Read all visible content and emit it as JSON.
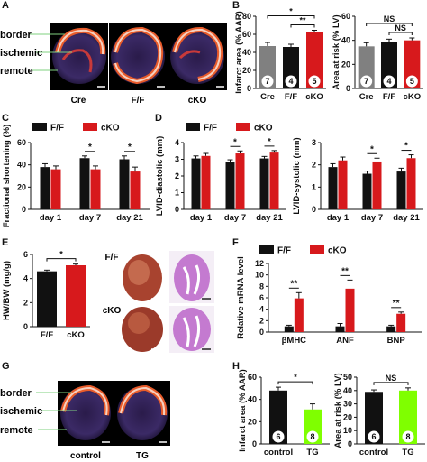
{
  "panel_letters": {
    "A": "A",
    "B": "B",
    "C": "C",
    "D": "D",
    "E": "E",
    "F": "F",
    "G": "G",
    "H": "H"
  },
  "panelA": {
    "region_labels": [
      "border",
      "ischemic",
      "remote"
    ],
    "image_labels": [
      "Cre",
      "F/F",
      "cKO"
    ]
  },
  "panelE": {
    "image_labels": [
      "F/F",
      "cKO"
    ]
  },
  "panelG": {
    "region_labels": [
      "border",
      "ischemic",
      "remote"
    ],
    "image_labels": [
      "control",
      "TG"
    ]
  },
  "colors": {
    "black": "#111111",
    "red": "#d7191c",
    "gray": "#808080",
    "green": "#7fff00",
    "tissue_red": "#b33a3a",
    "stain_purple": "#b060c0"
  },
  "chart_data": [
    {
      "id": "B1",
      "type": "bar",
      "categories": [
        "Cre",
        "F/F",
        "cKO"
      ],
      "values": [
        47,
        46,
        63
      ],
      "errors": [
        4,
        3,
        1.5
      ],
      "n_labels": [
        "7",
        "4",
        "5"
      ],
      "bar_colors": [
        "gray",
        "black",
        "red"
      ],
      "ylabel": "Infarct area (% AAR)",
      "ylim": [
        0,
        80
      ],
      "yticks": [
        "0",
        "20",
        "40",
        "60",
        "80"
      ],
      "significance": [
        {
          "from": 0,
          "to": 2,
          "label": "*"
        },
        {
          "from": 1,
          "to": 2,
          "label": "**"
        }
      ]
    },
    {
      "id": "B2",
      "type": "bar",
      "categories": [
        "Cre",
        "F/F",
        "cKO"
      ],
      "values": [
        35,
        39,
        40
      ],
      "errors": [
        3,
        2,
        2
      ],
      "n_labels": [
        "7",
        "4",
        "5"
      ],
      "bar_colors": [
        "gray",
        "black",
        "red"
      ],
      "ylabel": "Area at risk (% LV)",
      "ylim": [
        0,
        60
      ],
      "yticks": [
        "0",
        "20",
        "40",
        "60"
      ],
      "significance": [
        {
          "from": 0,
          "to": 2,
          "label": "NS"
        },
        {
          "from": 1,
          "to": 2,
          "label": "NS"
        }
      ]
    },
    {
      "id": "C",
      "type": "bar",
      "categories": [
        "day 1",
        "day 7",
        "day 21"
      ],
      "series": [
        {
          "name": "F/F",
          "color": "black",
          "values": [
            38,
            46,
            45
          ],
          "errors": [
            3,
            2,
            3
          ]
        },
        {
          "name": "cKO",
          "color": "red",
          "values": [
            36,
            36,
            34
          ],
          "errors": [
            3,
            3,
            4
          ]
        }
      ],
      "ylabel": "Fractional shortening (%)",
      "ylim": [
        0,
        60
      ],
      "yticks": [
        "0",
        "20",
        "40",
        "60"
      ],
      "significance": [
        {
          "group": 1,
          "label": "*"
        },
        {
          "group": 2,
          "label": "*"
        }
      ]
    },
    {
      "id": "D1",
      "type": "bar",
      "categories": [
        "day 1",
        "day 7",
        "day 21"
      ],
      "series": [
        {
          "name": "F/F",
          "color": "black",
          "values": [
            3.05,
            2.85,
            3.05
          ],
          "errors": [
            0.15,
            0.12,
            0.12
          ]
        },
        {
          "name": "cKO",
          "color": "red",
          "values": [
            3.2,
            3.35,
            3.4
          ],
          "errors": [
            0.15,
            0.15,
            0.12
          ]
        }
      ],
      "ylabel": "LVID-diastolic (mm)",
      "ylim": [
        0,
        4
      ],
      "yticks": [
        "0",
        "1",
        "2",
        "3",
        "4"
      ],
      "significance": [
        {
          "group": 1,
          "label": "*"
        },
        {
          "group": 2,
          "label": "*"
        }
      ]
    },
    {
      "id": "D2",
      "type": "bar",
      "categories": [
        "day 1",
        "day 7",
        "day 21"
      ],
      "series": [
        {
          "name": "F/F",
          "color": "black",
          "values": [
            1.9,
            1.6,
            1.7
          ],
          "errors": [
            0.15,
            0.12,
            0.15
          ]
        },
        {
          "name": "cKO",
          "color": "red",
          "values": [
            2.2,
            2.15,
            2.3
          ],
          "errors": [
            0.15,
            0.15,
            0.15
          ]
        }
      ],
      "ylabel": "LVID-systolic (mm)",
      "ylim": [
        0,
        3
      ],
      "yticks": [
        "0",
        "1",
        "2",
        "3"
      ],
      "significance": [
        {
          "group": 1,
          "label": "*"
        },
        {
          "group": 2,
          "label": "*"
        }
      ]
    },
    {
      "id": "E",
      "type": "bar",
      "categories": [
        "F/F",
        "cKO"
      ],
      "values": [
        4.6,
        5.1
      ],
      "errors": [
        0.1,
        0.1
      ],
      "bar_colors": [
        "black",
        "red"
      ],
      "ylabel": "HW/BW (mg/g)",
      "ylim": [
        0,
        6
      ],
      "yticks": [
        "0",
        "2",
        "4",
        "6"
      ],
      "significance": [
        {
          "from": 0,
          "to": 1,
          "label": "*"
        }
      ]
    },
    {
      "id": "F",
      "type": "bar",
      "categories": [
        "βMHC",
        "ANF",
        "BNP"
      ],
      "series": [
        {
          "name": "F/F",
          "color": "black",
          "values": [
            1,
            1,
            1
          ],
          "errors": [
            0.2,
            0.5,
            0.2
          ]
        },
        {
          "name": "cKO",
          "color": "red",
          "values": [
            5.9,
            7.6,
            3.2
          ],
          "errors": [
            1.0,
            1.5,
            0.3
          ]
        }
      ],
      "ylabel": "Relative mRNA level",
      "ylim": [
        0,
        12
      ],
      "yticks": [
        "0",
        "2",
        "4",
        "6",
        "8",
        "10",
        "12"
      ],
      "significance": [
        {
          "group": 0,
          "label": "**"
        },
        {
          "group": 1,
          "label": "**"
        },
        {
          "group": 2,
          "label": "**"
        }
      ]
    },
    {
      "id": "H1",
      "type": "bar",
      "categories": [
        "control",
        "TG"
      ],
      "values": [
        48,
        31
      ],
      "errors": [
        3,
        5
      ],
      "n_labels": [
        "6",
        "8"
      ],
      "bar_colors": [
        "black",
        "green"
      ],
      "ylabel": "Infarct area (% AAR)",
      "ylim": [
        0,
        60
      ],
      "yticks": [
        "0",
        "20",
        "40",
        "60"
      ],
      "significance": [
        {
          "from": 0,
          "to": 1,
          "label": "*"
        }
      ]
    },
    {
      "id": "H2",
      "type": "bar",
      "categories": [
        "control",
        "TG"
      ],
      "values": [
        39,
        40
      ],
      "errors": [
        1.5,
        2
      ],
      "n_labels": [
        "6",
        "8"
      ],
      "bar_colors": [
        "black",
        "green"
      ],
      "ylabel": "Area at risk (% LV)",
      "ylim": [
        0,
        50
      ],
      "yticks": [
        "0",
        "10",
        "20",
        "30",
        "40",
        "50"
      ],
      "significance": [
        {
          "from": 0,
          "to": 1,
          "label": "NS"
        }
      ]
    }
  ]
}
